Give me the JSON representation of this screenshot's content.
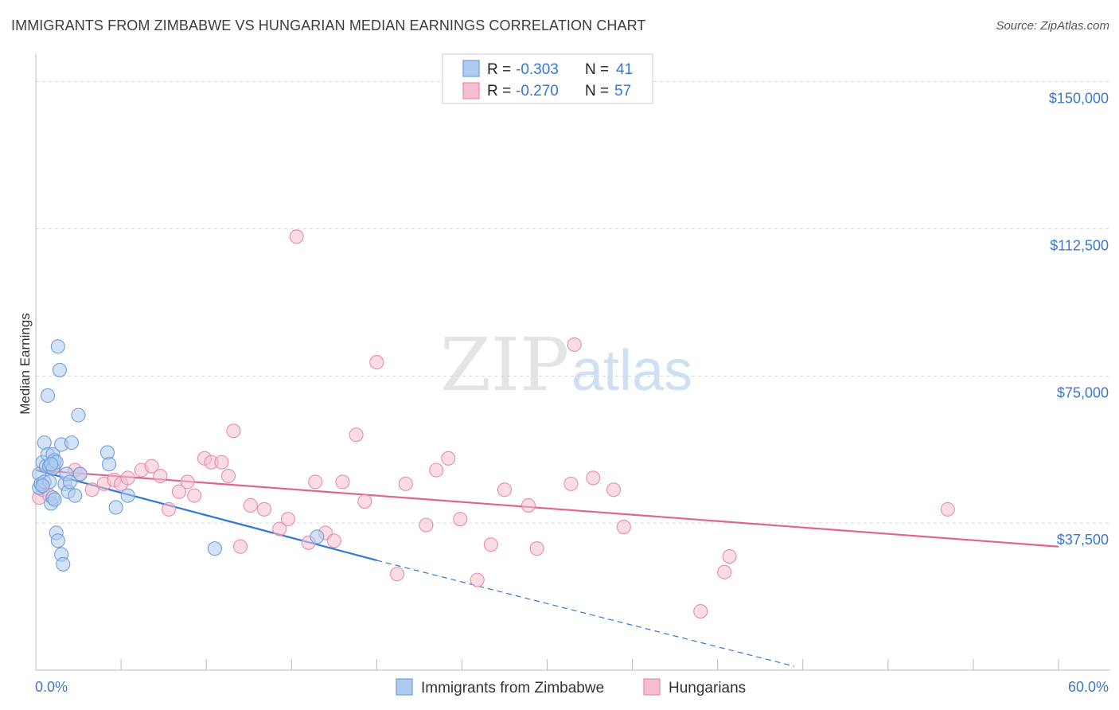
{
  "header": {
    "title": "IMMIGRANTS FROM ZIMBABWE VS HUNGARIAN MEDIAN EARNINGS CORRELATION CHART",
    "source": "Source: ZipAtlas.com"
  },
  "watermark": {
    "zip": "ZIP",
    "atlas": "atlas"
  },
  "legend_stats": [
    {
      "r_label": "R =",
      "r_value": "-0.303",
      "n_label": "N =",
      "n_value": "41"
    },
    {
      "r_label": "R =",
      "r_value": "-0.270",
      "n_label": "N =",
      "n_value": "57"
    }
  ],
  "colors": {
    "blue_fill": "#aecbf0",
    "blue_stroke": "#6f9fdc",
    "blue_line": "#3478d4",
    "pink_fill": "#f6bfd0",
    "pink_stroke": "#e98bab",
    "pink_line": "#e0648f",
    "tick_label": "#3b78c9",
    "grid": "#d6d6d6"
  },
  "chart_data": {
    "type": "scatter",
    "title": "IMMIGRANTS FROM ZIMBABWE VS HUNGARIAN MEDIAN EARNINGS CORRELATION CHART",
    "xlabel": "",
    "ylabel": "Median Earnings",
    "xlim": [
      0,
      60
    ],
    "ylim": [
      0,
      155000
    ],
    "x_tick_labels": [
      "0.0%",
      "60.0%"
    ],
    "y_ticks": [
      37500,
      75000,
      112500,
      150000
    ],
    "y_tick_labels": [
      "$37,500",
      "$75,000",
      "$112,500",
      "$150,000"
    ],
    "grid": true,
    "legend_position": "top-center",
    "series": [
      {
        "name": "Immigrants from Zimbabwe",
        "color": "#6f9fdc",
        "trend": {
          "x": [
            0.0,
            20.0
          ],
          "y": [
            51000,
            28000
          ],
          "dashed_to_x": 44.5,
          "dashed_to_y": 1000
        },
        "points": [
          [
            0.2,
            50000
          ],
          [
            0.2,
            46500
          ],
          [
            0.3,
            47500
          ],
          [
            0.4,
            53000
          ],
          [
            0.5,
            58000
          ],
          [
            0.5,
            48000
          ],
          [
            0.6,
            52000
          ],
          [
            0.7,
            55000
          ],
          [
            0.7,
            70000
          ],
          [
            0.8,
            52000
          ],
          [
            0.8,
            48000
          ],
          [
            0.9,
            42500
          ],
          [
            1.0,
            51500
          ],
          [
            1.0,
            55000
          ],
          [
            1.0,
            44000
          ],
          [
            1.1,
            43500
          ],
          [
            1.1,
            53500
          ],
          [
            1.2,
            35000
          ],
          [
            1.2,
            53000
          ],
          [
            1.3,
            33000
          ],
          [
            1.3,
            82500
          ],
          [
            1.4,
            76500
          ],
          [
            1.5,
            29500
          ],
          [
            1.5,
            57500
          ],
          [
            1.6,
            27000
          ],
          [
            1.7,
            47500
          ],
          [
            1.8,
            50000
          ],
          [
            1.9,
            45500
          ],
          [
            2.0,
            48000
          ],
          [
            2.1,
            58000
          ],
          [
            2.3,
            44500
          ],
          [
            2.5,
            65000
          ],
          [
            2.6,
            50000
          ],
          [
            4.2,
            55500
          ],
          [
            4.3,
            52500
          ],
          [
            4.7,
            41500
          ],
          [
            5.4,
            44500
          ],
          [
            10.5,
            31000
          ],
          [
            16.5,
            34000
          ],
          [
            0.4,
            47000
          ],
          [
            0.9,
            52500
          ]
        ]
      },
      {
        "name": "Hungarians",
        "color": "#e98bab",
        "trend": {
          "x": [
            0.0,
            60.0
          ],
          "y": [
            51000,
            31500
          ]
        },
        "points": [
          [
            0.2,
            44000
          ],
          [
            0.4,
            46000
          ],
          [
            0.8,
            44500
          ],
          [
            1.1,
            52000
          ],
          [
            2.3,
            51000
          ],
          [
            2.6,
            50000
          ],
          [
            3.3,
            46000
          ],
          [
            4.0,
            47500
          ],
          [
            4.6,
            48500
          ],
          [
            5.0,
            47500
          ],
          [
            5.4,
            49000
          ],
          [
            6.2,
            51000
          ],
          [
            6.8,
            52000
          ],
          [
            7.3,
            49500
          ],
          [
            7.8,
            41000
          ],
          [
            8.4,
            45500
          ],
          [
            8.9,
            48000
          ],
          [
            9.3,
            44500
          ],
          [
            9.9,
            54000
          ],
          [
            10.3,
            53000
          ],
          [
            10.9,
            53000
          ],
          [
            11.3,
            49500
          ],
          [
            11.6,
            61000
          ],
          [
            12.0,
            31500
          ],
          [
            12.6,
            42000
          ],
          [
            13.4,
            41000
          ],
          [
            14.3,
            36000
          ],
          [
            14.8,
            38500
          ],
          [
            15.3,
            110500
          ],
          [
            16.0,
            32500
          ],
          [
            16.4,
            48000
          ],
          [
            17.0,
            35000
          ],
          [
            17.5,
            33000
          ],
          [
            18.0,
            48000
          ],
          [
            18.8,
            60000
          ],
          [
            19.3,
            43000
          ],
          [
            20.0,
            78500
          ],
          [
            21.2,
            24500
          ],
          [
            21.7,
            47500
          ],
          [
            22.9,
            37000
          ],
          [
            23.5,
            51000
          ],
          [
            24.2,
            54000
          ],
          [
            24.9,
            38500
          ],
          [
            25.9,
            23000
          ],
          [
            26.7,
            32000
          ],
          [
            27.5,
            46000
          ],
          [
            28.9,
            42000
          ],
          [
            29.4,
            31000
          ],
          [
            31.4,
            47500
          ],
          [
            31.6,
            83000
          ],
          [
            32.7,
            49000
          ],
          [
            33.9,
            46000
          ],
          [
            34.5,
            36500
          ],
          [
            39.0,
            15000
          ],
          [
            40.7,
            29000
          ],
          [
            40.4,
            25000
          ],
          [
            53.5,
            41000
          ]
        ]
      }
    ]
  }
}
